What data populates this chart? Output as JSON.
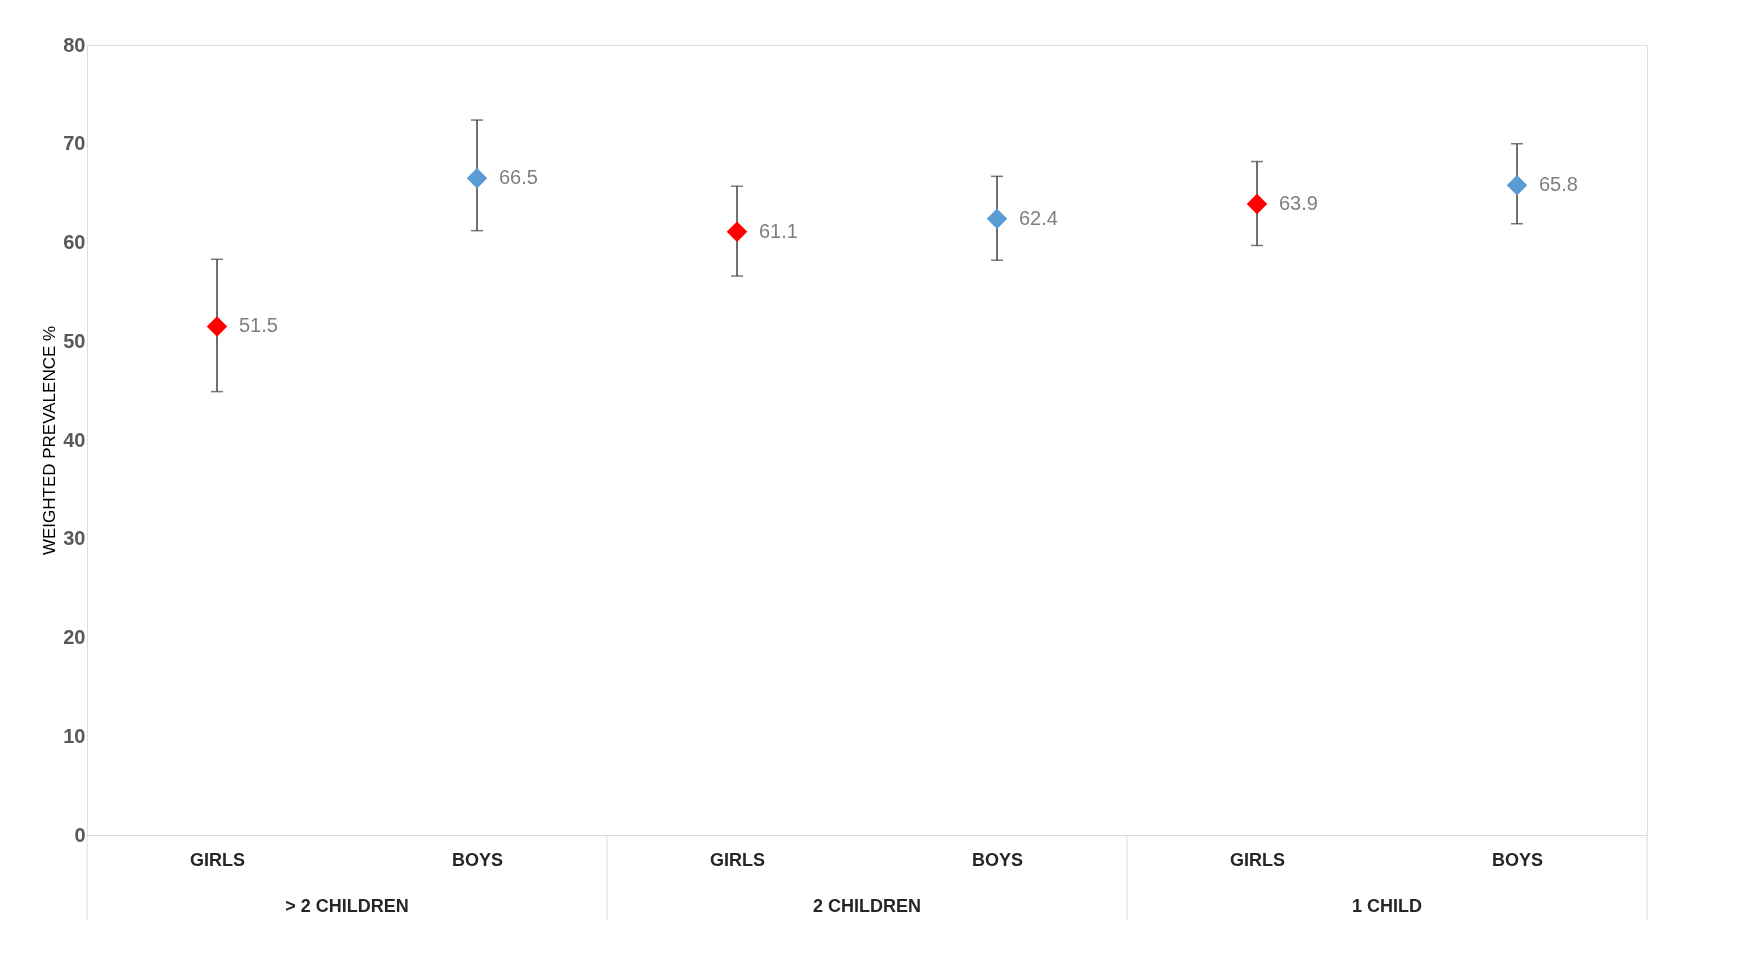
{
  "chart_data": {
    "type": "scatter",
    "ylabel": "WEIGHTED PREVALENCE %",
    "categories": [
      "GIRLS",
      "BOYS",
      "GIRLS",
      "BOYS",
      "GIRLS",
      "BOYS"
    ],
    "values": [
      51.5,
      66.5,
      61.1,
      62.4,
      63.9,
      65.8
    ],
    "colors": [
      "#ff0000",
      "#5b9bd5",
      "#ff0000",
      "#5b9bd5",
      "#ff0000",
      "#5b9bd5"
    ],
    "errors": [
      [
        44.9,
        58.3
      ],
      [
        61.2,
        72.4
      ],
      [
        56.6,
        65.7
      ],
      [
        58.2,
        66.7
      ],
      [
        59.7,
        68.2
      ],
      [
        61.9,
        70.0
      ]
    ],
    "annotations": [
      "> 2 CHILDREN",
      "2 CHILDREN",
      "1 CHILD"
    ],
    "ylim": [
      0,
      80
    ],
    "yticks": [
      0,
      10,
      20,
      30,
      40,
      50,
      60,
      70,
      80
    ],
    "marker": "diamond",
    "data_labels": true,
    "grid": false
  }
}
